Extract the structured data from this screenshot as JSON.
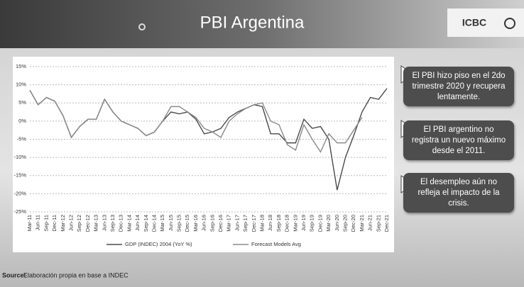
{
  "slide": {
    "title": "PBI Argentina",
    "logo": "ICBC",
    "callouts": [
      "El PBI hizo piso en el 2do trimestre 2020 y recupera lentamente.",
      "El PBI argentino no registra un nuevo máximo desde el 2011.",
      "El desempleo aún no refleja el impacto de la crisis."
    ],
    "source_label": "Source:",
    "source_text": "Elaboración propia en base a INDEC"
  },
  "chart_data": {
    "type": "line",
    "categories": [
      "Mar-11",
      "Jun-11",
      "Sep-11",
      "Dec-11",
      "Mar-12",
      "Jun-12",
      "Sep-12",
      "Dec-12",
      "Mar-13",
      "Jun-13",
      "Sep-13",
      "Dec-13",
      "Mar-14",
      "Jun-14",
      "Sep-14",
      "Dec-14",
      "Mar-15",
      "Jun-15",
      "Sep-15",
      "Dec-15",
      "Mar-16",
      "Jun-16",
      "Sep-16",
      "Dec-16",
      "Mar-17",
      "Jun-17",
      "Sep-17",
      "Dec-17",
      "Mar-18",
      "Jun-18",
      "Sep-18",
      "Dec-18",
      "Mar-19",
      "Jun-19",
      "Sep-19",
      "Dec-19",
      "Mar-20",
      "Jun-20",
      "Sep-20",
      "Dec-20",
      "Mar-21",
      "Jun-21",
      "Sep-21",
      "Dec-21"
    ],
    "series": [
      {
        "name": "GDP (INDEC) 2004 (YoY %)",
        "color": "#4a4a4a",
        "values": [
          8.5,
          4.5,
          6.5,
          5.5,
          1.5,
          -4.5,
          -1.5,
          0.5,
          0.5,
          6,
          2.5,
          0,
          -1,
          -2,
          -4,
          -3,
          0,
          2.5,
          2,
          2.5,
          0.5,
          -3.5,
          -3,
          -2,
          1,
          2.5,
          3.5,
          4.5,
          4,
          -3.5,
          -3.5,
          -6,
          -6,
          0.5,
          -2,
          -1.5,
          -5,
          -19,
          -10,
          -4,
          2.5,
          6.5,
          6,
          9
        ]
      },
      {
        "name": "Forecast Models Avg",
        "color": "#8a8a8a",
        "values": [
          8.5,
          4.5,
          6.5,
          5.5,
          1.5,
          -4.5,
          -1.5,
          0.5,
          0.5,
          6,
          2.5,
          0,
          -1,
          -2,
          -4,
          -3,
          0,
          4,
          4,
          2.5,
          1,
          -2,
          -3,
          -4.5,
          0,
          2,
          3.5,
          4.5,
          5,
          0,
          -1,
          -6.5,
          -8,
          -1,
          -5,
          -8.5,
          -3.5,
          -6,
          -6,
          -2.5,
          1,
          null,
          null,
          null
        ]
      }
    ],
    "ylim": [
      -25,
      15
    ],
    "yticks": [
      {
        "value": -25,
        "label": "-25%"
      },
      {
        "value": -20,
        "label": "-20%"
      },
      {
        "value": -15,
        "label": "-15%"
      },
      {
        "value": -10,
        "label": "-10%"
      },
      {
        "value": -5,
        "label": "-5%"
      },
      {
        "value": 0,
        "label": "0%"
      },
      {
        "value": 5,
        "label": "5%"
      },
      {
        "value": 10,
        "label": "10%"
      },
      {
        "value": 15,
        "label": "15%"
      }
    ],
    "grid": true,
    "legend": "bottom"
  }
}
